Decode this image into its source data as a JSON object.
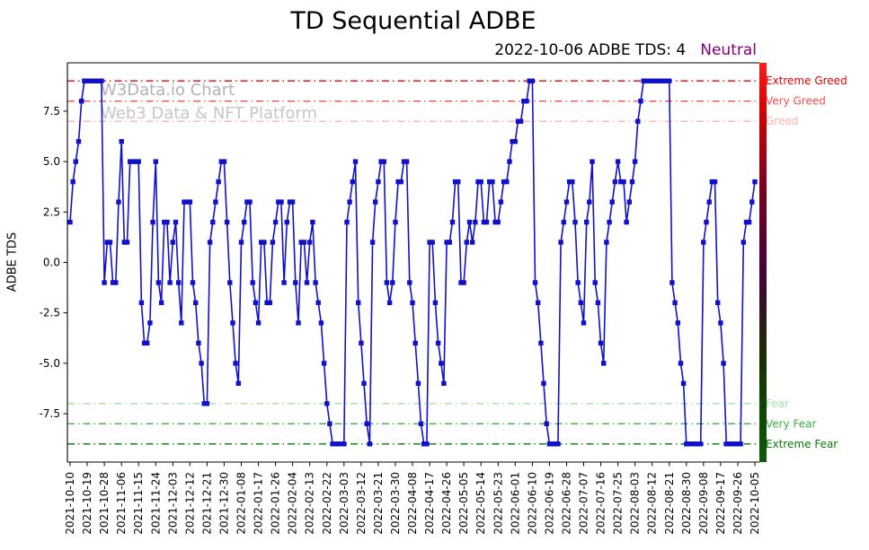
{
  "header": {
    "title": "TD Sequential ADBE",
    "subtitle_text": "2022-10-06 ADBE TDS: 4",
    "subtitle_status": "Neutral",
    "status_color": "#800080"
  },
  "watermark": {
    "line1": "W3Data.io Chart",
    "line2": "Web3 Data & NFT Platform"
  },
  "chart_data": {
    "type": "line",
    "title": "TD Sequential ADBE",
    "ylabel": "ADBE TDS",
    "ylim": [
      -9.9,
      9.9
    ],
    "yticks": [
      "-7.5",
      "-5.0",
      "-2.5",
      "0.0",
      "2.5",
      "5.0",
      "7.5"
    ],
    "line_color": "#1111cc",
    "marker": "square",
    "grid": false,
    "tick_every": 6,
    "tick_labels": [
      "2021-10-10",
      "2021-10-19",
      "2021-10-28",
      "2021-11-06",
      "2021-11-15",
      "2021-11-24",
      "2021-12-03",
      "2021-12-12",
      "2021-12-21",
      "2021-12-30",
      "2022-01-08",
      "2022-01-17",
      "2022-01-26",
      "2022-02-04",
      "2022-02-13",
      "2022-02-22",
      "2022-03-03",
      "2022-03-12",
      "2022-03-21",
      "2022-03-30",
      "2022-04-08",
      "2022-04-17",
      "2022-04-26",
      "2022-05-05",
      "2022-05-14",
      "2022-05-23",
      "2022-06-01",
      "2022-06-10",
      "2022-06-19",
      "2022-06-28",
      "2022-07-07",
      "2022-07-16",
      "2022-07-25",
      "2022-08-03",
      "2022-08-12",
      "2022-08-21",
      "2022-08-30",
      "2022-09-08",
      "2022-09-17",
      "2022-09-26",
      "2022-10-05"
    ],
    "values": [
      2,
      4,
      5,
      6,
      8,
      9,
      9,
      9,
      9,
      9,
      9,
      9,
      -1,
      1,
      1,
      -1,
      -1,
      3,
      6,
      1,
      1,
      5,
      5,
      5,
      5,
      -2,
      -4,
      -4,
      -3,
      2,
      5,
      -1,
      -2,
      2,
      2,
      -1,
      1,
      2,
      -1,
      -3,
      3,
      3,
      3,
      -1,
      -2,
      -4,
      -5,
      -7,
      -7,
      1,
      2,
      3,
      4,
      5,
      5,
      2,
      -1,
      -3,
      -5,
      -6,
      1,
      2,
      3,
      3,
      -1,
      -2,
      -3,
      1,
      1,
      -2,
      -2,
      1,
      2,
      3,
      3,
      -1,
      2,
      3,
      3,
      -1,
      -3,
      1,
      1,
      -1,
      1,
      2,
      -1,
      -2,
      -3,
      -5,
      -7,
      -8,
      -9,
      -9,
      -9,
      -9,
      -9,
      2,
      3,
      4,
      5,
      -2,
      -4,
      -6,
      -8,
      -9,
      1,
      3,
      4,
      5,
      5,
      -1,
      -2,
      -1,
      2,
      4,
      4,
      5,
      5,
      -1,
      -2,
      -4,
      -6,
      -8,
      -9,
      -9,
      1,
      1,
      -2,
      -4,
      -5,
      -6,
      1,
      1,
      2,
      4,
      4,
      -1,
      -1,
      1,
      2,
      1,
      2,
      4,
      4,
      2,
      2,
      4,
      4,
      2,
      2,
      3,
      4,
      4,
      5,
      6,
      6,
      7,
      7,
      8,
      8,
      9,
      9,
      -1,
      -2,
      -4,
      -6,
      -8,
      -9,
      -9,
      -9,
      -9,
      1,
      2,
      3,
      4,
      4,
      2,
      -1,
      -2,
      -3,
      2,
      3,
      5,
      -1,
      -2,
      -4,
      -5,
      1,
      2,
      3,
      4,
      5,
      4,
      4,
      2,
      3,
      4,
      5,
      7,
      8,
      9,
      9,
      9,
      9,
      9,
      9,
      9,
      9,
      9,
      9,
      -1,
      -2,
      -3,
      -5,
      -6,
      -9,
      -9,
      -9,
      -9,
      -9,
      -9,
      1,
      2,
      3,
      4,
      4,
      -2,
      -3,
      -5,
      -9,
      -9,
      -9,
      -9,
      -9,
      -9,
      1,
      2,
      2,
      3,
      4
    ],
    "thresholds": [
      {
        "value": 9,
        "label": "Extreme Greed",
        "color": "#e60000"
      },
      {
        "value": 8,
        "label": "Very Greed",
        "color": "#ff4d4d"
      },
      {
        "value": 7,
        "label": "Greed",
        "color": "#ffb0b0"
      },
      {
        "value": -7,
        "label": "Fear",
        "color": "#a8e0a8"
      },
      {
        "value": -8,
        "label": "Very Fear",
        "color": "#3cb043"
      },
      {
        "value": -9,
        "label": "Extreme Fear",
        "color": "#067d06"
      }
    ],
    "colorbar": {
      "stops": [
        {
          "offset": "0%",
          "color": "#ff1a1a"
        },
        {
          "offset": "12%",
          "color": "#d90000"
        },
        {
          "offset": "32%",
          "color": "#7a001f"
        },
        {
          "offset": "52%",
          "color": "#46003c"
        },
        {
          "offset": "75%",
          "color": "#173000"
        },
        {
          "offset": "100%",
          "color": "#0a5c0a"
        }
      ]
    }
  }
}
